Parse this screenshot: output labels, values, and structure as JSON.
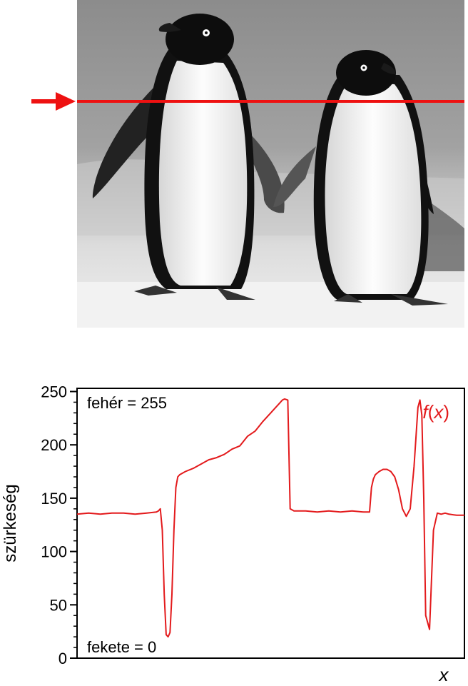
{
  "photo": {
    "description": "",
    "scanline_color": "#ee1111"
  },
  "chart_data": {
    "type": "line",
    "title": "",
    "xlabel": "x",
    "ylabel": "szürkeség",
    "ylim": [
      0,
      255
    ],
    "yticks": [
      0,
      50,
      100,
      150,
      200,
      250
    ],
    "xlim": [
      0,
      100
    ],
    "grid": false,
    "annotations": {
      "top": "fehér = 255",
      "bottom": "fekete = 0"
    },
    "series": [
      {
        "name": "f(x)",
        "color": "#e31a1c",
        "x": [
          0,
          3,
          6,
          9,
          12,
          15,
          18,
          20.5,
          21.0,
          21.5,
          22.0,
          22.5,
          23.0,
          23.5,
          24.0,
          24.5,
          25.0,
          25.5,
          26.0,
          26.5,
          27.0,
          27.5,
          28,
          30,
          32,
          34,
          36,
          38,
          40,
          42,
          44,
          46,
          48,
          50,
          52,
          53,
          53.6,
          54.4,
          55,
          56,
          59,
          62,
          65,
          68,
          71,
          74,
          75.5,
          76,
          76.5,
          77,
          78,
          79,
          80,
          81,
          82,
          83,
          84,
          85,
          86,
          87,
          88,
          88.5,
          89,
          89.5,
          90,
          91,
          92,
          93,
          94,
          95,
          96,
          98,
          100
        ],
        "values": [
          135,
          136,
          135,
          136,
          136,
          135,
          136,
          137,
          138,
          140,
          120,
          60,
          22,
          20,
          24,
          60,
          120,
          160,
          170,
          172,
          173,
          174,
          175,
          178,
          182,
          186,
          188,
          191,
          196,
          199,
          208,
          213,
          222,
          230,
          238,
          242,
          243,
          242,
          140,
          138,
          138,
          137,
          138,
          137,
          138,
          137,
          137,
          160,
          168,
          172,
          175,
          177,
          177,
          175,
          170,
          158,
          140,
          133,
          140,
          180,
          235,
          242,
          228,
          150,
          40,
          27,
          120,
          136,
          135,
          136,
          135,
          134,
          134
        ]
      }
    ]
  }
}
